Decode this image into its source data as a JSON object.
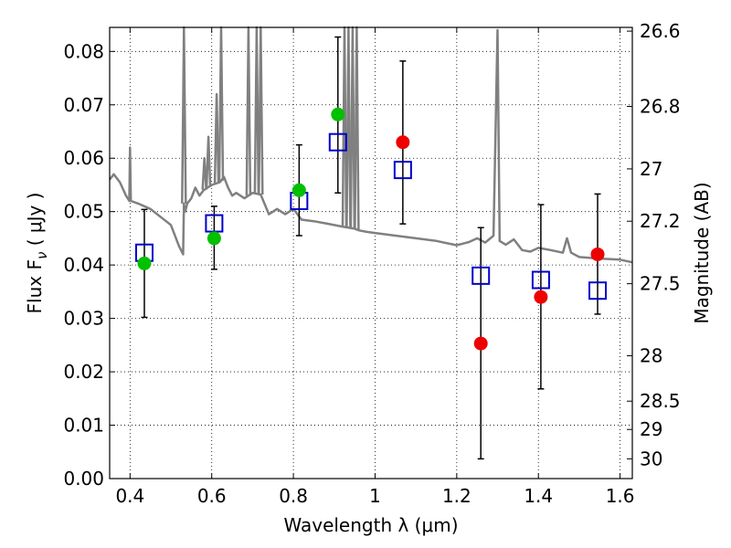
{
  "chart_data": {
    "type": "scatter",
    "xlabel": "Wavelength  λ (μm)",
    "ylabel": "Flux  F",
    "ylabel_sub": "ν",
    "ylabel_units": " ( μJy )",
    "y2label": "Magnitude (AB)",
    "xlim": [
      0.35,
      1.63
    ],
    "ylim": [
      0.0,
      0.0845
    ],
    "grid": true,
    "x_ticks": [
      0.4,
      0.6,
      0.8,
      1.0,
      1.2,
      1.4,
      1.6
    ],
    "x_tick_labels": [
      "0.4",
      "0.6",
      "0.8",
      "1",
      "1.2",
      "1.4",
      "1.6"
    ],
    "y_ticks": [
      0.0,
      0.01,
      0.02,
      0.03,
      0.04,
      0.05,
      0.06,
      0.07,
      0.08
    ],
    "y_tick_labels": [
      "0.00",
      "0.01",
      "0.02",
      "0.03",
      "0.04",
      "0.05",
      "0.06",
      "0.07",
      "0.08"
    ],
    "y2_ticks": [
      {
        "label": "26.6",
        "flux": 0.0838
      },
      {
        "label": "26.8",
        "flux": 0.0697
      },
      {
        "label": "27",
        "flux": 0.058
      },
      {
        "label": "27.2",
        "flux": 0.0482
      },
      {
        "label": "27.5",
        "flux": 0.0365
      },
      {
        "label": "28",
        "flux": 0.023
      },
      {
        "label": "28.5",
        "flux": 0.0145
      },
      {
        "label": "29",
        "flux": 0.0092
      },
      {
        "label": "30",
        "flux": 0.0037
      }
    ],
    "series": [
      {
        "marker": "square",
        "color": "#0000cc",
        "points": [
          {
            "x": 0.435,
            "y": 0.0423
          },
          {
            "x": 0.606,
            "y": 0.0478
          },
          {
            "x": 0.814,
            "y": 0.052
          },
          {
            "x": 0.909,
            "y": 0.063
          },
          {
            "x": 1.068,
            "y": 0.0578
          },
          {
            "x": 1.259,
            "y": 0.038
          },
          {
            "x": 1.406,
            "y": 0.0372
          },
          {
            "x": 1.545,
            "y": 0.0352
          }
        ]
      },
      {
        "marker": "circle",
        "color": "#00c000",
        "points": [
          {
            "x": 0.435,
            "y": 0.0403,
            "yerr_low": 0.0302,
            "yerr_high": 0.0504
          },
          {
            "x": 0.606,
            "y": 0.045,
            "yerr_low": 0.0392,
            "yerr_high": 0.051
          },
          {
            "x": 0.814,
            "y": 0.054,
            "yerr_low": 0.0455,
            "yerr_high": 0.0625
          },
          {
            "x": 0.909,
            "y": 0.0682,
            "yerr_low": 0.0535,
            "yerr_high": 0.0827
          }
        ]
      },
      {
        "marker": "circle",
        "color": "#ee0000",
        "points": [
          {
            "x": 1.068,
            "y": 0.063,
            "yerr_low": 0.0477,
            "yerr_high": 0.0782
          },
          {
            "x": 1.259,
            "y": 0.0253,
            "yerr_low": 0.0037,
            "yerr_high": 0.047
          },
          {
            "x": 1.406,
            "y": 0.034,
            "yerr_low": 0.0168,
            "yerr_high": 0.0513
          },
          {
            "x": 1.545,
            "y": 0.042,
            "yerr_low": 0.0308,
            "yerr_high": 0.0533
          }
        ]
      }
    ],
    "spectrum": {
      "color": "#808080",
      "x": [
        0.35,
        0.36,
        0.375,
        0.39,
        0.398,
        0.4,
        0.402,
        0.42,
        0.45,
        0.5,
        0.52,
        0.53,
        0.532,
        0.535,
        0.54,
        0.55,
        0.56,
        0.57,
        0.58,
        0.6,
        0.62,
        0.63,
        0.64,
        0.65,
        0.66,
        0.68,
        0.7,
        0.72,
        0.74,
        0.76,
        0.78,
        0.8,
        0.82,
        0.85,
        0.88,
        0.92,
        0.95,
        0.96,
        0.98,
        1.0,
        1.05,
        1.1,
        1.15,
        1.2,
        1.23,
        1.25,
        1.27,
        1.29,
        1.3,
        1.305,
        1.32,
        1.34,
        1.36,
        1.38,
        1.4,
        1.43,
        1.46,
        1.47,
        1.48,
        1.5,
        1.55,
        1.6,
        1.63
      ],
      "y": [
        0.056,
        0.057,
        0.0555,
        0.053,
        0.052,
        0.062,
        0.052,
        0.0515,
        0.0505,
        0.0475,
        0.0435,
        0.042,
        0.0515,
        0.05,
        0.0515,
        0.0525,
        0.0545,
        0.053,
        0.054,
        0.055,
        0.0555,
        0.0565,
        0.0545,
        0.053,
        0.0535,
        0.0525,
        0.0535,
        0.0532,
        0.0495,
        0.0505,
        0.0495,
        0.0505,
        0.0485,
        0.0482,
        0.0478,
        0.0472,
        0.0468,
        0.0465,
        0.0462,
        0.046,
        0.0455,
        0.045,
        0.0445,
        0.0437,
        0.0443,
        0.045,
        0.0442,
        0.0455,
        0.084,
        0.0445,
        0.0438,
        0.0448,
        0.0428,
        0.0425,
        0.0432,
        0.0428,
        0.0423,
        0.045,
        0.0423,
        0.0415,
        0.0412,
        0.041,
        0.0405
      ],
      "spikes": [
        {
          "x": 0.532,
          "peak": 0.0845
        },
        {
          "x": 0.582,
          "peak": 0.06
        },
        {
          "x": 0.592,
          "peak": 0.064
        },
        {
          "x": 0.612,
          "peak": 0.072
        },
        {
          "x": 0.623,
          "peak": 0.0845
        },
        {
          "x": 0.69,
          "peak": 0.0845
        },
        {
          "x": 0.71,
          "peak": 0.0845
        },
        {
          "x": 0.72,
          "peak": 0.0845
        },
        {
          "x": 0.925,
          "peak": 0.0845
        },
        {
          "x": 0.935,
          "peak": 0.0845
        },
        {
          "x": 0.945,
          "peak": 0.0845
        },
        {
          "x": 0.955,
          "peak": 0.0845
        }
      ]
    }
  }
}
